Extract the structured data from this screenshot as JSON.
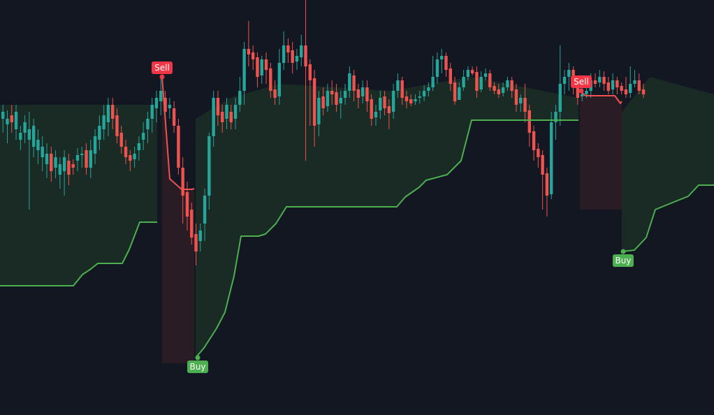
{
  "colors": {
    "background": "#131722",
    "up": "#26a69a",
    "down": "#ef5350",
    "trend_up_line": "#4caf50",
    "trend_down_line": "#f05252",
    "fill_up": "#1a2a24",
    "fill_down": "#2a1c24",
    "buy_label": "#4caf50",
    "sell_label": "#f23645"
  },
  "signals": {
    "sell_1": "Sell",
    "buy_1": "Buy",
    "sell_2": "Sell",
    "buy_2": "Buy"
  },
  "chart_data": {
    "type": "candlestick",
    "y_range": [
      0,
      594
    ],
    "candle_x_start": 2,
    "candle_spacing": 6.28,
    "candles": [
      [
        170,
        160,
        150,
        190
      ],
      [
        178,
        170,
        158,
        205
      ],
      [
        165,
        175,
        150,
        190
      ],
      [
        185,
        160,
        150,
        200
      ],
      [
        200,
        190,
        180,
        215
      ],
      [
        190,
        175,
        165,
        205
      ],
      [
        200,
        185,
        160,
        300
      ],
      [
        210,
        180,
        170,
        225
      ],
      [
        215,
        200,
        185,
        235
      ],
      [
        225,
        210,
        195,
        245
      ],
      [
        235,
        220,
        205,
        255
      ],
      [
        220,
        245,
        210,
        260
      ],
      [
        240,
        225,
        215,
        255
      ],
      [
        250,
        235,
        225,
        270
      ],
      [
        245,
        225,
        215,
        280
      ],
      [
        230,
        250,
        220,
        265
      ],
      [
        235,
        240,
        228,
        250
      ],
      [
        230,
        222,
        212,
        245
      ],
      [
        222,
        220,
        210,
        240
      ],
      [
        215,
        240,
        205,
        250
      ],
      [
        240,
        215,
        200,
        255
      ],
      [
        220,
        195,
        185,
        235
      ],
      [
        200,
        180,
        165,
        215
      ],
      [
        185,
        165,
        150,
        200
      ],
      [
        175,
        150,
        140,
        195
      ],
      [
        150,
        170,
        140,
        185
      ],
      [
        165,
        195,
        155,
        205
      ],
      [
        190,
        210,
        180,
        220
      ],
      [
        210,
        225,
        200,
        235
      ],
      [
        222,
        230,
        215,
        245
      ],
      [
        228,
        220,
        210,
        240
      ],
      [
        215,
        205,
        195,
        230
      ],
      [
        200,
        190,
        175,
        215
      ],
      [
        185,
        170,
        160,
        205
      ],
      [
        170,
        150,
        140,
        190
      ],
      [
        155,
        140,
        130,
        175
      ],
      [
        145,
        130,
        110,
        165
      ],
      [
        140,
        160,
        130,
        175
      ],
      [
        155,
        150,
        140,
        170
      ],
      [
        155,
        180,
        145,
        190
      ],
      [
        180,
        240,
        170,
        250
      ],
      [
        240,
        280,
        225,
        320
      ],
      [
        275,
        310,
        260,
        330
      ],
      [
        300,
        340,
        290,
        350
      ],
      [
        335,
        360,
        320,
        380
      ],
      [
        345,
        330,
        320,
        360
      ],
      [
        320,
        280,
        270,
        345
      ],
      [
        280,
        195,
        190,
        300
      ],
      [
        195,
        140,
        130,
        210
      ],
      [
        140,
        165,
        130,
        180
      ],
      [
        160,
        175,
        150,
        190
      ],
      [
        170,
        150,
        140,
        185
      ],
      [
        160,
        175,
        150,
        185
      ],
      [
        170,
        150,
        140,
        185
      ],
      [
        150,
        130,
        110,
        160
      ],
      [
        130,
        70,
        60,
        150
      ],
      [
        70,
        78,
        30,
        95
      ],
      [
        75,
        85,
        65,
        100
      ],
      [
        82,
        110,
        75,
        125
      ],
      [
        108,
        85,
        80,
        120
      ],
      [
        85,
        100,
        75,
        120
      ],
      [
        98,
        130,
        90,
        140
      ],
      [
        128,
        140,
        115,
        150
      ],
      [
        138,
        90,
        70,
        150
      ],
      [
        90,
        65,
        45,
        100
      ],
      [
        65,
        75,
        55,
        90
      ],
      [
        72,
        90,
        60,
        105
      ],
      [
        88,
        80,
        70,
        100
      ],
      [
        82,
        65,
        50,
        95
      ],
      [
        65,
        95,
        0,
        230
      ],
      [
        92,
        115,
        85,
        180
      ],
      [
        112,
        180,
        100,
        210
      ],
      [
        178,
        140,
        130,
        195
      ],
      [
        138,
        155,
        125,
        165
      ],
      [
        152,
        130,
        120,
        160
      ],
      [
        130,
        135,
        115,
        150
      ],
      [
        132,
        150,
        120,
        160
      ],
      [
        148,
        140,
        130,
        170
      ],
      [
        140,
        130,
        120,
        150
      ],
      [
        130,
        105,
        95,
        140
      ],
      [
        108,
        130,
        100,
        145
      ],
      [
        128,
        140,
        120,
        155
      ],
      [
        138,
        125,
        115,
        148
      ],
      [
        125,
        145,
        115,
        160
      ],
      [
        142,
        170,
        135,
        180
      ],
      [
        168,
        160,
        150,
        180
      ],
      [
        158,
        140,
        130,
        170
      ],
      [
        138,
        155,
        130,
        165
      ],
      [
        152,
        162,
        142,
        185
      ],
      [
        160,
        130,
        120,
        170
      ],
      [
        130,
        115,
        105,
        140
      ],
      [
        115,
        140,
        110,
        150
      ],
      [
        138,
        145,
        130,
        155
      ],
      [
        142,
        148,
        135,
        152
      ],
      [
        145,
        142,
        135,
        150
      ],
      [
        140,
        138,
        130,
        148
      ],
      [
        138,
        130,
        122,
        145
      ],
      [
        130,
        125,
        118,
        138
      ],
      [
        125,
        110,
        80,
        130
      ],
      [
        110,
        85,
        75,
        120
      ],
      [
        85,
        80,
        70,
        105
      ],
      [
        80,
        100,
        75,
        110
      ],
      [
        98,
        120,
        90,
        130
      ],
      [
        118,
        145,
        110,
        150
      ],
      [
        143,
        125,
        118,
        140
      ],
      [
        125,
        110,
        100,
        130
      ],
      [
        110,
        100,
        95,
        115
      ],
      [
        100,
        105,
        95,
        108
      ],
      [
        103,
        130,
        95,
        140
      ],
      [
        128,
        110,
        102,
        132
      ],
      [
        110,
        105,
        98,
        115
      ],
      [
        105,
        125,
        100,
        130
      ],
      [
        123,
        130,
        118,
        135
      ],
      [
        128,
        135,
        120,
        140
      ],
      [
        133,
        125,
        118,
        138
      ],
      [
        125,
        115,
        110,
        130
      ],
      [
        115,
        130,
        110,
        140
      ],
      [
        128,
        150,
        120,
        160
      ],
      [
        148,
        140,
        135,
        160
      ],
      [
        140,
        160,
        120,
        175
      ],
      [
        158,
        190,
        150,
        210
      ],
      [
        188,
        215,
        180,
        230
      ],
      [
        213,
        225,
        205,
        240
      ],
      [
        222,
        250,
        215,
        300
      ],
      [
        248,
        280,
        240,
        310
      ],
      [
        278,
        175,
        160,
        285
      ],
      [
        175,
        160,
        150,
        200
      ],
      [
        160,
        120,
        65,
        180
      ],
      [
        120,
        110,
        100,
        135
      ],
      [
        110,
        100,
        90,
        130
      ],
      [
        100,
        125,
        95,
        135
      ],
      [
        123,
        140,
        115,
        150
      ],
      [
        138,
        135,
        125,
        145
      ],
      [
        135,
        130,
        120,
        140
      ],
      [
        130,
        115,
        105,
        140
      ],
      [
        115,
        120,
        105,
        125
      ],
      [
        118,
        110,
        100,
        125
      ],
      [
        110,
        120,
        102,
        130
      ],
      [
        118,
        130,
        110,
        135
      ],
      [
        128,
        115,
        105,
        135
      ],
      [
        115,
        125,
        110,
        135
      ],
      [
        123,
        130,
        118,
        135
      ],
      [
        128,
        135,
        110,
        140
      ],
      [
        133,
        120,
        95,
        140
      ],
      [
        120,
        115,
        100,
        125
      ],
      [
        115,
        130,
        105,
        135
      ],
      [
        128,
        135,
        120,
        140
      ]
    ],
    "trend_line": {
      "up_segment_1": [
        [
          0,
          409
        ],
        [
          105,
          409
        ],
        [
          118,
          393
        ],
        [
          130,
          385
        ],
        [
          140,
          377
        ],
        [
          175,
          377
        ],
        [
          185,
          357
        ],
        [
          200,
          318
        ],
        [
          225,
          318
        ]
      ],
      "down_segment_1": [
        [
          232,
          110
        ],
        [
          243,
          256
        ],
        [
          260,
          271
        ],
        [
          275,
          271
        ],
        [
          278,
          270
        ]
      ],
      "up_segment_2": [
        [
          280,
          512
        ],
        [
          292,
          498
        ],
        [
          310,
          470
        ],
        [
          322,
          447
        ],
        [
          335,
          395
        ],
        [
          345,
          338
        ],
        [
          370,
          338
        ],
        [
          380,
          335
        ],
        [
          395,
          320
        ],
        [
          410,
          296
        ],
        [
          560,
          296
        ],
        [
          568,
          296
        ],
        [
          580,
          282
        ],
        [
          600,
          268
        ],
        [
          610,
          258
        ],
        [
          640,
          250
        ],
        [
          660,
          230
        ],
        [
          675,
          172
        ],
        [
          828,
          172
        ]
      ],
      "down_segment_2": [
        [
          830,
          130
        ],
        [
          838,
          137
        ],
        [
          880,
          137
        ],
        [
          888,
          148
        ],
        [
          890,
          145
        ]
      ],
      "up_segment_3": [
        [
          890,
          360
        ],
        [
          908,
          358
        ],
        [
          925,
          340
        ],
        [
          938,
          300
        ],
        [
          955,
          293
        ],
        [
          975,
          285
        ],
        [
          985,
          281
        ],
        [
          1000,
          265
        ],
        [
          1022,
          265
        ]
      ]
    },
    "signal_markers": [
      {
        "type": "sell",
        "x": 232,
        "y": 110
      },
      {
        "type": "buy",
        "x": 283,
        "y": 512
      },
      {
        "type": "sell",
        "x": 832,
        "y": 130
      },
      {
        "type": "buy",
        "x": 892,
        "y": 360
      }
    ]
  }
}
